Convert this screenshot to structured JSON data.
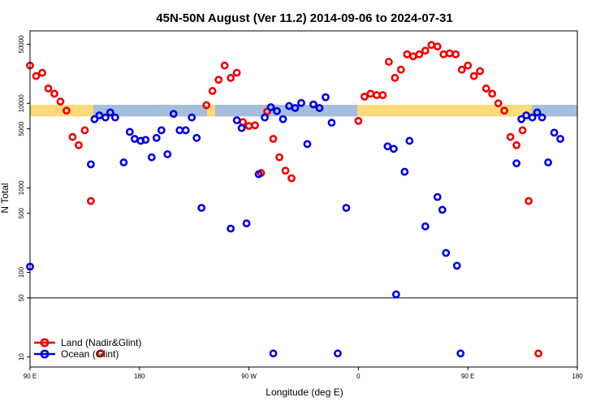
{
  "chart_data": {
    "type": "scatter",
    "title": "45N-50N August (Ver 11.2)   2014-09-06 to 2024-07-31",
    "xlabel": "Longitude (deg E)",
    "ylabel": "N Total",
    "yscale": "log",
    "x_ticks": [
      {
        "label": "90 E"
      },
      {
        "label": "180"
      },
      {
        "label": "90 W"
      },
      {
        "label": "0"
      },
      {
        "label": "90 E"
      },
      {
        "label": "180"
      }
    ],
    "y_ticks": [
      "10",
      "50",
      "100",
      "500",
      "1000",
      "5000",
      "10000",
      "50000"
    ],
    "reference_line": 50,
    "band": {
      "y_low": 7000,
      "y_high": 9600,
      "colors": [
        "#ffd97a",
        "#a6bedd"
      ]
    },
    "colors": {
      "land": "#ee0000",
      "ocean": "#0000dd"
    },
    "legend_position": "bottom-left",
    "series": [
      {
        "name": "Land (Nadir&Glint)",
        "key": "land",
        "points": [
          [
            0,
            28000
          ],
          [
            5,
            21000
          ],
          [
            10,
            23000
          ],
          [
            15,
            15000
          ],
          [
            20,
            13000
          ],
          [
            25,
            10500
          ],
          [
            30,
            8200
          ],
          [
            35,
            4000
          ],
          [
            40,
            3200
          ],
          [
            45,
            4800
          ],
          [
            50,
            700
          ],
          [
            58,
            11
          ],
          [
            145,
            9500
          ],
          [
            150,
            14000
          ],
          [
            155,
            19000
          ],
          [
            160,
            28000
          ],
          [
            165,
            20000
          ],
          [
            170,
            23000
          ],
          [
            175,
            6000
          ],
          [
            180,
            5400
          ],
          [
            185,
            5500
          ],
          [
            190,
            1500
          ],
          [
            195,
            8000
          ],
          [
            200,
            3800
          ],
          [
            205,
            2300
          ],
          [
            210,
            1600
          ],
          [
            215,
            1300
          ],
          [
            270,
            6200
          ],
          [
            275,
            12000
          ],
          [
            280,
            13000
          ],
          [
            285,
            12500
          ],
          [
            290,
            12500
          ],
          [
            295,
            31000
          ],
          [
            300,
            20000
          ],
          [
            305,
            25000
          ],
          [
            310,
            38000
          ],
          [
            315,
            36000
          ],
          [
            320,
            38000
          ],
          [
            325,
            42000
          ],
          [
            330,
            49000
          ],
          [
            335,
            47000
          ],
          [
            340,
            38000
          ],
          [
            345,
            39000
          ],
          [
            350,
            38000
          ],
          [
            355,
            25000
          ],
          [
            360,
            28000
          ],
          [
            365,
            21000
          ],
          [
            370,
            24000
          ],
          [
            375,
            15000
          ],
          [
            380,
            13000
          ],
          [
            385,
            10000
          ],
          [
            390,
            8200
          ],
          [
            395,
            4000
          ],
          [
            400,
            3200
          ],
          [
            405,
            4800
          ],
          [
            410,
            700
          ],
          [
            418,
            11
          ]
        ]
      },
      {
        "name": "Ocean (Glint)",
        "key": "ocean",
        "points": [
          [
            0,
            117
          ],
          [
            50,
            1900
          ],
          [
            53,
            6500
          ],
          [
            57,
            7200
          ],
          [
            62,
            6800
          ],
          [
            66,
            7800
          ],
          [
            70,
            6800
          ],
          [
            77,
            2000
          ],
          [
            82,
            4600
          ],
          [
            86,
            3800
          ],
          [
            91,
            3600
          ],
          [
            95,
            3700
          ],
          [
            100,
            2300
          ],
          [
            104,
            3900
          ],
          [
            108,
            4800
          ],
          [
            113,
            2500
          ],
          [
            118,
            7500
          ],
          [
            123,
            4800
          ],
          [
            128,
            4800
          ],
          [
            133,
            6800
          ],
          [
            137,
            3900
          ],
          [
            141,
            580
          ],
          [
            165,
            330
          ],
          [
            170,
            6300
          ],
          [
            174,
            5100
          ],
          [
            178,
            380
          ],
          [
            188,
            1450
          ],
          [
            193,
            6800
          ],
          [
            198,
            9000
          ],
          [
            200,
            11
          ],
          [
            203,
            8100
          ],
          [
            208,
            6500
          ],
          [
            213,
            9300
          ],
          [
            218,
            8800
          ],
          [
            223,
            10100
          ],
          [
            228,
            3300
          ],
          [
            233,
            9700
          ],
          [
            238,
            8800
          ],
          [
            243,
            11800
          ],
          [
            248,
            5900
          ],
          [
            253,
            11
          ],
          [
            260,
            580
          ],
          [
            294,
            3100
          ],
          [
            299,
            2900
          ],
          [
            301,
            55
          ],
          [
            308,
            1550
          ],
          [
            312,
            3600
          ],
          [
            325,
            350
          ],
          [
            335,
            780
          ],
          [
            339,
            550
          ],
          [
            342,
            170
          ],
          [
            351,
            120
          ],
          [
            354,
            11
          ],
          [
            400,
            1950
          ],
          [
            404,
            6500
          ],
          [
            408,
            7200
          ],
          [
            413,
            6800
          ],
          [
            417,
            7800
          ],
          [
            421,
            6800
          ],
          [
            426,
            2000
          ],
          [
            431,
            4500
          ],
          [
            436,
            3800
          ]
        ]
      }
    ]
  }
}
